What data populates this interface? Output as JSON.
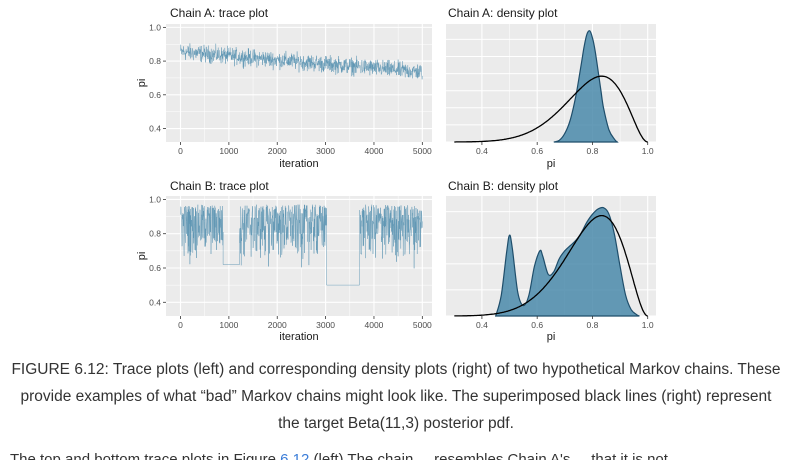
{
  "caption": "FIGURE 6.12: Trace plots (left) and corresponding density plots (right) of two hypothetical Markov chains. These provide examples of what “bad” Markov chains might look like. The superimposed black lines (right) represent the target Beta(11,3) posterior pdf.",
  "body_text": {
    "before": "The top and bottom trace plots in Figure ",
    "link": "6.12",
    "after": " (left) The chain ... resembles Chain A's ... that it is not..."
  },
  "colors": {
    "panel_bg": "#ebebeb",
    "grid": "#ffffff",
    "series": "#5b94b2",
    "fill": "#4a89aa",
    "density_line": "#1f4e6b",
    "target": "#000000"
  },
  "chart_data": [
    {
      "type": "line",
      "title": "Chain A: trace plot",
      "xlabel": "iteration",
      "ylabel": "pi",
      "xlim": [
        -300,
        5200
      ],
      "ylim": [
        0.32,
        1.02
      ],
      "x_ticks": [
        0,
        1000,
        2000,
        3000,
        4000,
        5000
      ],
      "y_ticks": [
        0.4,
        0.6,
        0.8,
        1.0
      ],
      "x_tick_labels": [
        "0",
        "1000",
        "2000",
        "3000",
        "4000",
        "5000"
      ],
      "y_tick_labels": [
        "0.4",
        "0.6",
        "0.8",
        "1.0"
      ],
      "segments": [
        {
          "kind": "noise",
          "from": 0,
          "to": 5000,
          "mean_start": 0.855,
          "mean_end": 0.735,
          "amplitude": 0.035
        }
      ]
    },
    {
      "type": "area",
      "title": "Chain A: density plot",
      "xlabel": "pi",
      "ylabel": "",
      "xlim": [
        0.27,
        1.03
      ],
      "ylim": [
        0,
        6.9
      ],
      "x_ticks": [
        0.4,
        0.6,
        0.8,
        1.0
      ],
      "x_tick_labels": [
        "0.4",
        "0.6",
        "0.8",
        "1.0"
      ],
      "density_x": [
        0.66,
        0.68,
        0.7,
        0.72,
        0.74,
        0.76,
        0.77,
        0.78,
        0.79,
        0.8,
        0.81,
        0.82,
        0.83,
        0.84,
        0.86,
        0.88,
        0.89
      ],
      "density_y": [
        0.0,
        0.1,
        0.5,
        1.3,
        2.7,
        4.6,
        5.6,
        6.3,
        6.5,
        6.1,
        5.3,
        4.2,
        3.1,
        2.0,
        0.7,
        0.15,
        0.0
      ],
      "target": {
        "name": "Beta(11,3)",
        "a": 11,
        "b": 3
      }
    },
    {
      "type": "line",
      "title": "Chain B: trace plot",
      "xlabel": "iteration",
      "ylabel": "pi",
      "xlim": [
        -300,
        5200
      ],
      "ylim": [
        0.32,
        1.02
      ],
      "x_ticks": [
        0,
        1000,
        2000,
        3000,
        4000,
        5000
      ],
      "y_ticks": [
        0.4,
        0.6,
        0.8,
        1.0
      ],
      "x_tick_labels": [
        "0",
        "1000",
        "2000",
        "3000",
        "4000",
        "5000"
      ],
      "y_tick_labels": [
        "0.4",
        "0.6",
        "0.8",
        "1.0"
      ],
      "segments": [
        {
          "kind": "noise",
          "from": 0,
          "to": 880,
          "mean": 0.82,
          "min": 0.6,
          "max": 0.97
        },
        {
          "kind": "flat",
          "from": 880,
          "to": 1220,
          "value": 0.62
        },
        {
          "kind": "noise",
          "from": 1220,
          "to": 3020,
          "mean": 0.82,
          "min": 0.58,
          "max": 0.97
        },
        {
          "kind": "flat",
          "from": 3020,
          "to": 3700,
          "value": 0.5
        },
        {
          "kind": "noise",
          "from": 3700,
          "to": 5000,
          "mean": 0.82,
          "min": 0.58,
          "max": 0.97
        }
      ]
    },
    {
      "type": "area",
      "title": "Chain B: density plot",
      "xlabel": "pi",
      "ylabel": "",
      "xlim": [
        0.27,
        1.03
      ],
      "ylim": [
        0,
        4.6
      ],
      "x_ticks": [
        0.4,
        0.6,
        0.8,
        1.0
      ],
      "x_tick_labels": [
        "0.4",
        "0.6",
        "0.8",
        "1.0"
      ],
      "density_x": [
        0.45,
        0.47,
        0.49,
        0.5,
        0.51,
        0.53,
        0.55,
        0.57,
        0.59,
        0.61,
        0.62,
        0.64,
        0.66,
        0.68,
        0.7,
        0.72,
        0.74,
        0.76,
        0.78,
        0.8,
        0.82,
        0.84,
        0.86,
        0.88,
        0.9,
        0.92,
        0.94,
        0.96,
        0.97
      ],
      "density_y": [
        0.0,
        0.8,
        2.5,
        3.1,
        2.6,
        0.9,
        0.4,
        0.8,
        1.9,
        2.5,
        2.3,
        1.6,
        1.7,
        2.2,
        2.5,
        2.7,
        2.9,
        3.2,
        3.6,
        3.9,
        4.1,
        4.15,
        3.9,
        3.1,
        1.9,
        0.8,
        0.25,
        0.05,
        0.0
      ],
      "target": {
        "name": "Beta(11,3)",
        "a": 11,
        "b": 3
      }
    }
  ]
}
